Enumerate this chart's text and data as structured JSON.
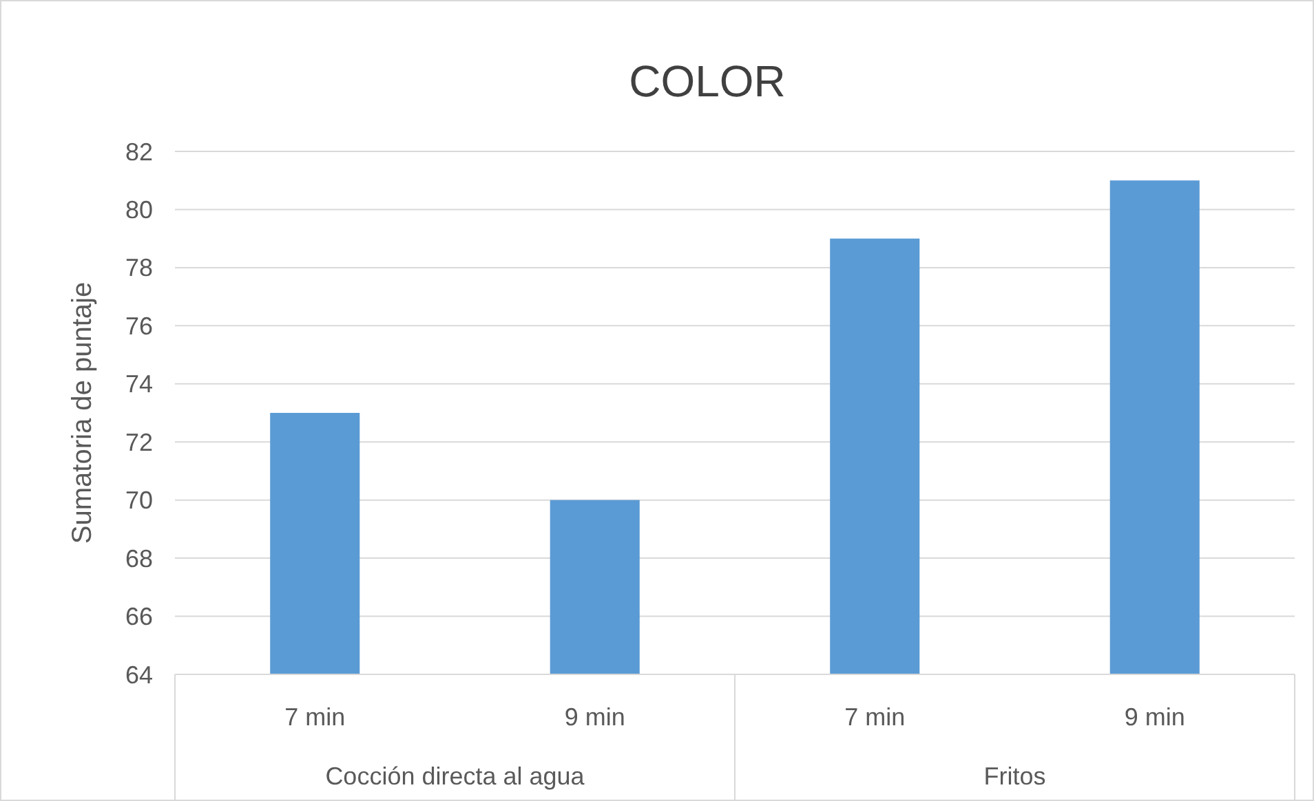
{
  "chart_data": {
    "type": "bar",
    "title": "COLOR",
    "ylabel": "Sumatoria de puntaje",
    "categories": [
      "7 min",
      "9 min",
      "7 min",
      "9 min"
    ],
    "values": [
      73,
      70,
      79,
      81
    ],
    "color": "#5b9bd5",
    "ylim": [
      64,
      82
    ],
    "yticks": [
      64,
      66,
      68,
      70,
      72,
      74,
      76,
      78,
      80,
      82
    ],
    "grid": "y",
    "annotations": [
      "Cocción directa al agua",
      "Fritos"
    ]
  }
}
